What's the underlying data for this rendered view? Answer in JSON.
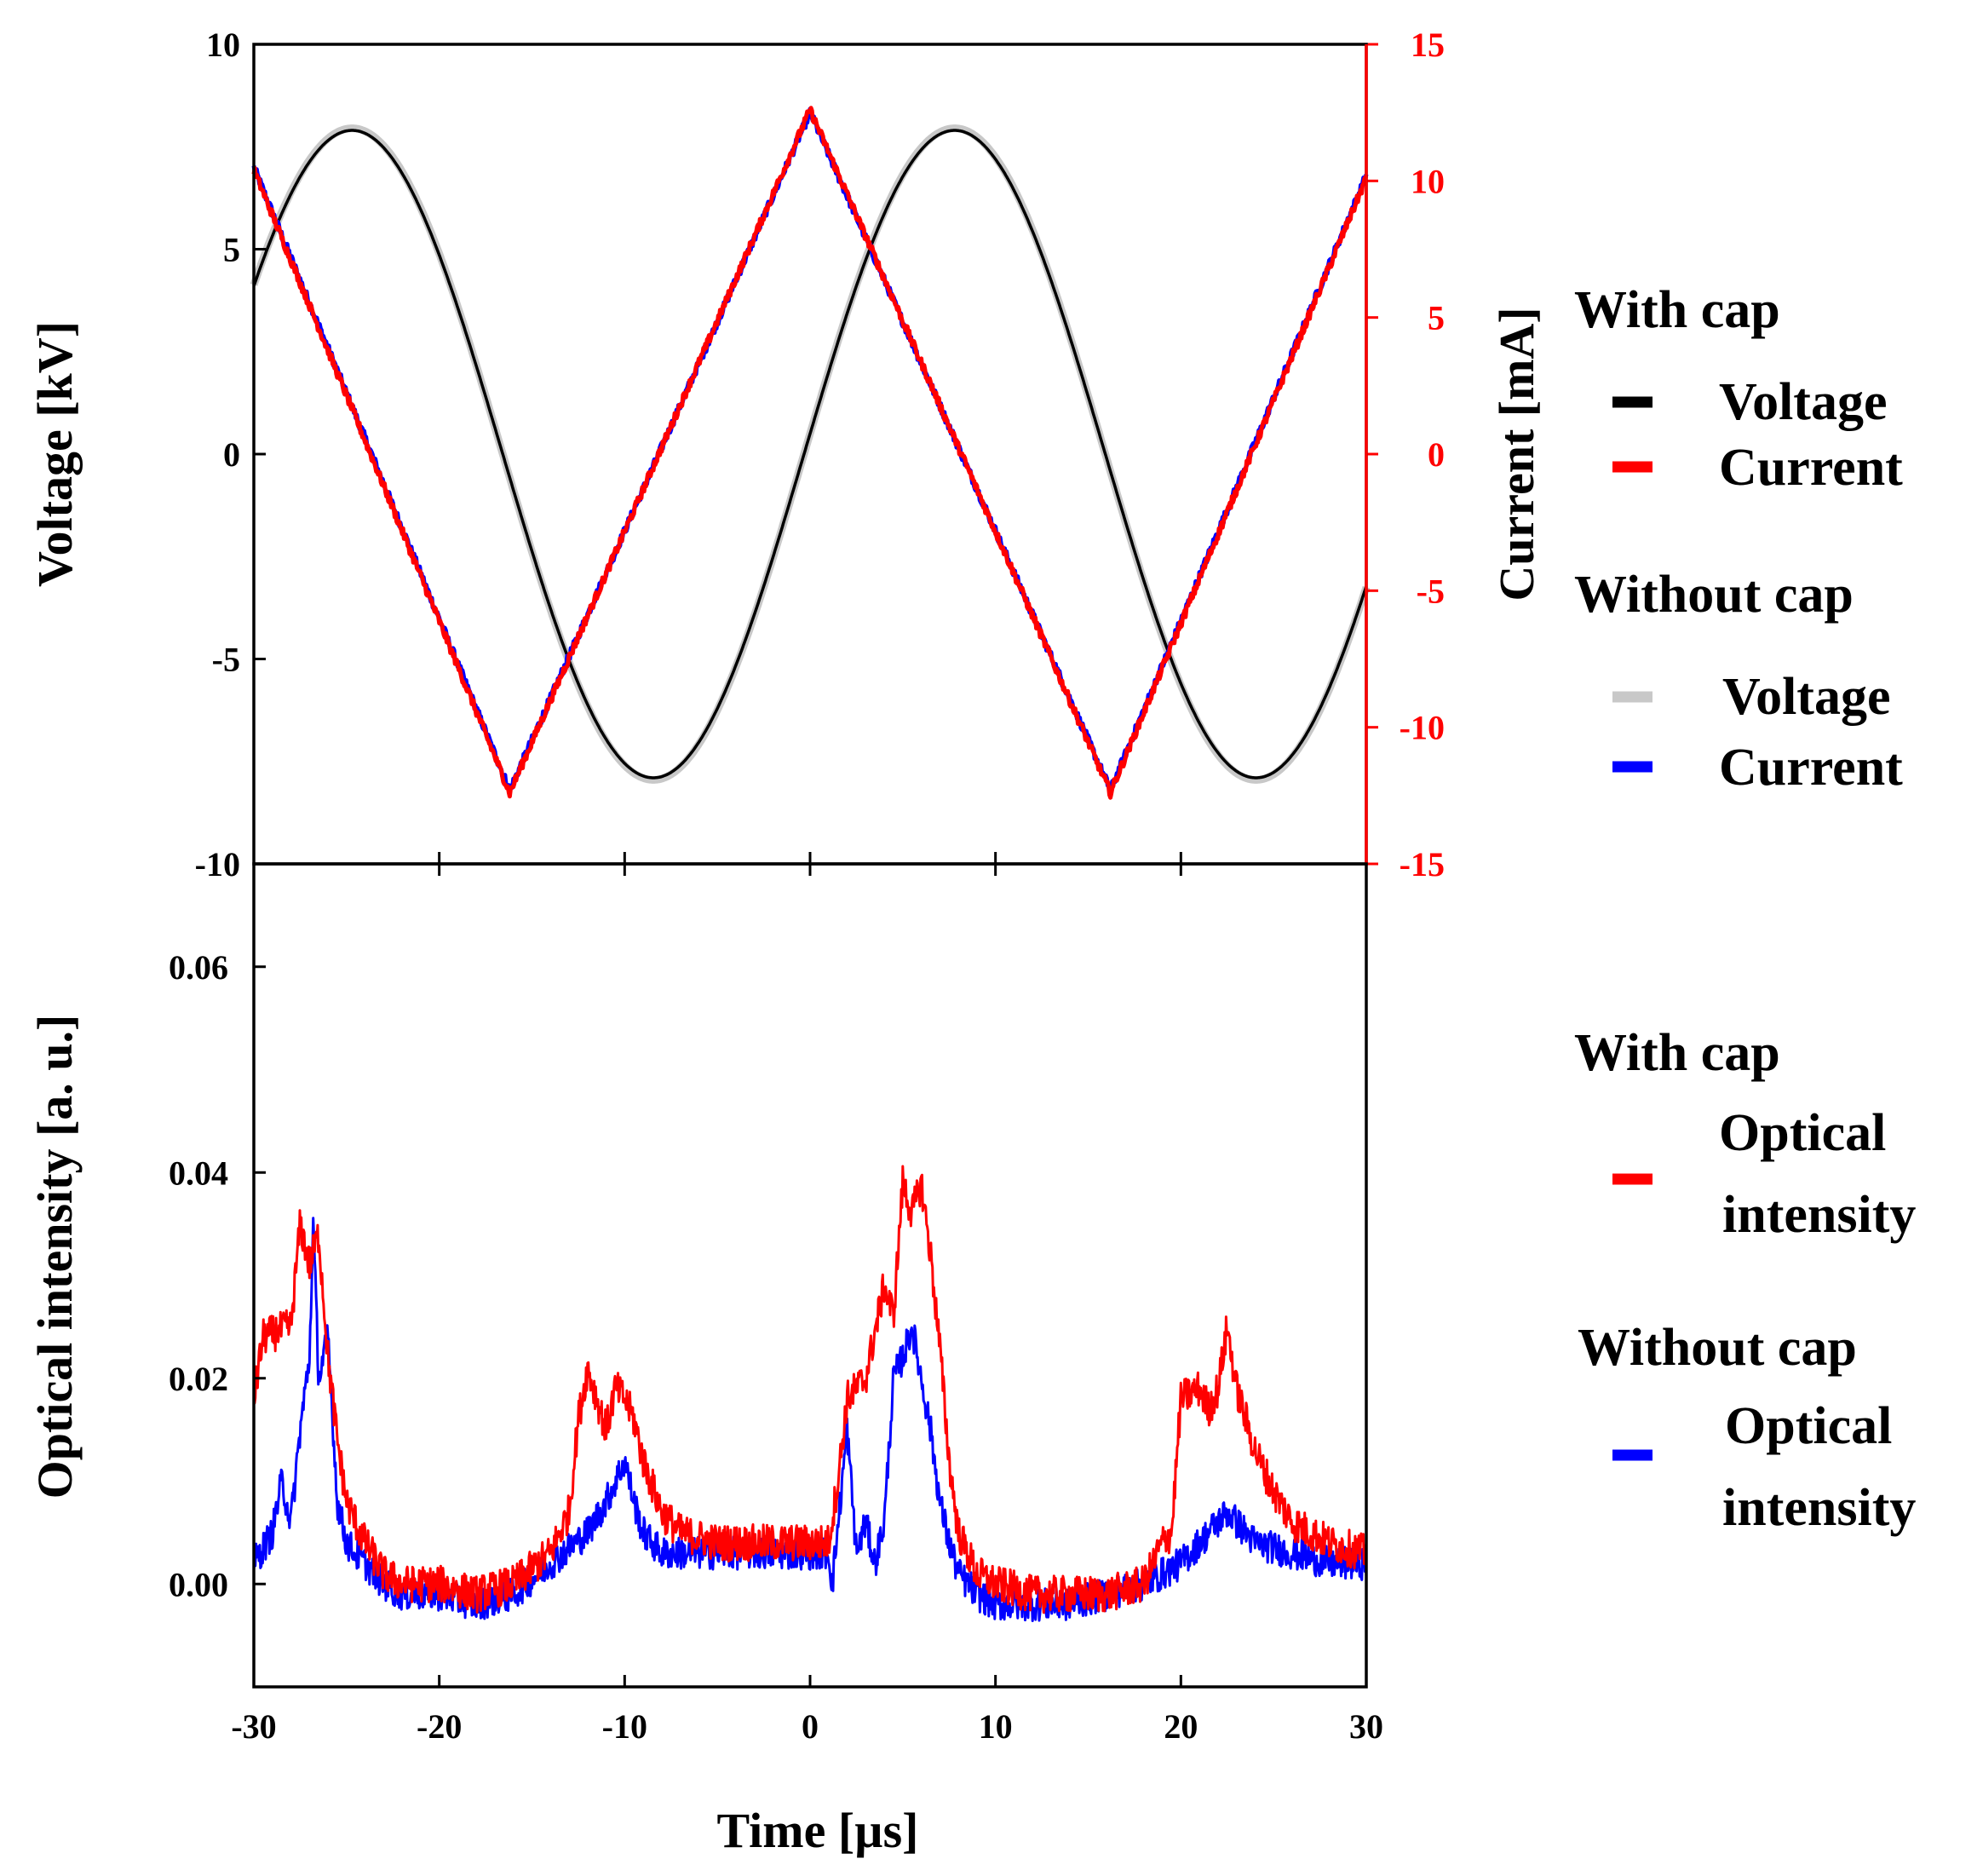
{
  "chart_data": [
    {
      "type": "line",
      "panel": "top",
      "x_unit": "µs",
      "xlim": [
        -30,
        30
      ],
      "ylabel": "Voltage [kV]",
      "ylim": [
        -10,
        10
      ],
      "yticks": [
        -10,
        -5,
        0,
        5,
        10
      ],
      "y2label": "Current [mA]",
      "y2lim": [
        -15,
        15
      ],
      "y2ticks": [
        -15,
        -10,
        -5,
        0,
        5,
        10,
        15
      ],
      "y2_color": "#ff0000",
      "series": [
        {
          "name": "Voltage (without cap)",
          "axis": "y",
          "color": "#c8c8c8",
          "width": 9,
          "shape": "sine",
          "amplitude": 7.95,
          "period_us": 32.5,
          "peak_at_us": 7.8
        },
        {
          "name": "Voltage (with cap)",
          "axis": "y",
          "color": "#000000",
          "width": 3.5,
          "shape": "sine",
          "amplitude": 7.9,
          "period_us": 32.5,
          "peak_at_us": 7.8
        },
        {
          "name": "Current (without cap)",
          "axis": "y2",
          "color": "#0000ff",
          "width": 5,
          "shape": "triangle",
          "x": [
            -30,
            -16.2,
            0,
            16.2,
            30
          ],
          "y": [
            10.5,
            -12.3,
            12.5,
            -12.3,
            10.2
          ]
        },
        {
          "name": "Current (with cap)",
          "axis": "y2",
          "color": "#ff0000",
          "width": 5,
          "shape": "triangle",
          "x": [
            -30,
            -16.2,
            0,
            16.2,
            30
          ],
          "y": [
            10.4,
            -12.4,
            12.6,
            -12.4,
            10.1
          ]
        }
      ],
      "legend": [
        {
          "group": "With cap",
          "items": [
            {
              "label": "Voltage",
              "color": "#000000"
            },
            {
              "label": "Current",
              "color": "#ff0000"
            }
          ]
        },
        {
          "group": "Without cap",
          "items": [
            {
              "label": "Voltage",
              "color": "#c8c8c8"
            },
            {
              "label": "Current",
              "color": "#0000ff"
            }
          ]
        }
      ]
    },
    {
      "type": "line",
      "panel": "bottom",
      "xlabel": "Time [µs]",
      "xlim": [
        -30,
        30
      ],
      "xticks": [
        -30,
        -20,
        -10,
        0,
        10,
        20,
        30
      ],
      "ylabel": "Optical intensity [a. u.]",
      "ylim": [
        -0.01,
        0.07
      ],
      "yticks": [
        "0.00",
        "0.02",
        "0.04",
        "0.06"
      ],
      "series": [
        {
          "name": "Optical intensity (with cap)",
          "color": "#ff0000",
          "width": 3,
          "noise": 0.0018,
          "x": [
            -30,
            -29.5,
            -28,
            -27.5,
            -27,
            -26.5,
            -26,
            -25.5,
            -25,
            -24,
            -23,
            -22,
            -20,
            -18,
            -16,
            -14,
            -13,
            -12.5,
            -12,
            -11.5,
            -11,
            -10.5,
            -10,
            -9.5,
            -9,
            -8,
            -7,
            -5,
            -2,
            0,
            1,
            1.5,
            2,
            3,
            4,
            4.5,
            5,
            5.5,
            6,
            6.5,
            7,
            7.5,
            8,
            9,
            10,
            12,
            14,
            16,
            18,
            19,
            19.5,
            20,
            21,
            21.5,
            22,
            22.5,
            23,
            24,
            25,
            26,
            27,
            28,
            30
          ],
          "y": [
            0.018,
            0.024,
            0.025,
            0.035,
            0.031,
            0.034,
            0.022,
            0.014,
            0.008,
            0.004,
            0.001,
            0.0,
            0.0,
            -0.001,
            0.0,
            0.003,
            0.007,
            0.016,
            0.021,
            0.018,
            0.015,
            0.019,
            0.018,
            0.016,
            0.012,
            0.007,
            0.005,
            0.004,
            0.004,
            0.004,
            0.004,
            0.01,
            0.018,
            0.02,
            0.029,
            0.026,
            0.039,
            0.036,
            0.039,
            0.032,
            0.023,
            0.012,
            0.005,
            0.001,
            0.0,
            -0.001,
            -0.001,
            -0.001,
            0.0,
            0.004,
            0.005,
            0.018,
            0.019,
            0.017,
            0.019,
            0.025,
            0.019,
            0.013,
            0.009,
            0.006,
            0.005,
            0.004,
            0.003
          ]
        },
        {
          "name": "Optical intensity (without cap)",
          "color": "#0000ff",
          "width": 3,
          "noise": 0.0016,
          "x": [
            -30,
            -29,
            -28.5,
            -28,
            -27.5,
            -27,
            -26.8,
            -26.5,
            -26,
            -25.5,
            -25,
            -24,
            -23,
            -22,
            -20,
            -18,
            -16,
            -14,
            -12,
            -11,
            -10.5,
            -10,
            -9.5,
            -9,
            -8,
            -7,
            -5,
            -2,
            0,
            1,
            1.2,
            2,
            2.5,
            3,
            3.5,
            4,
            4.5,
            5,
            5.5,
            6,
            6.5,
            7,
            7.5,
            8,
            9,
            10,
            12,
            14,
            16,
            18,
            20,
            21,
            22,
            22.5,
            23,
            24,
            26,
            28,
            30
          ],
          "y": [
            0.002,
            0.005,
            0.01,
            0.006,
            0.015,
            0.022,
            0.035,
            0.02,
            0.024,
            0.008,
            0.004,
            0.002,
            0.0,
            -0.001,
            -0.001,
            -0.002,
            -0.001,
            0.002,
            0.005,
            0.008,
            0.01,
            0.012,
            0.008,
            0.005,
            0.003,
            0.003,
            0.003,
            0.003,
            0.003,
            0.003,
            0.0,
            0.015,
            0.003,
            0.006,
            0.002,
            0.006,
            0.02,
            0.022,
            0.025,
            0.02,
            0.015,
            0.008,
            0.004,
            0.001,
            -0.001,
            -0.002,
            -0.002,
            -0.002,
            -0.001,
            0.0,
            0.002,
            0.004,
            0.006,
            0.007,
            0.006,
            0.004,
            0.003,
            0.002,
            0.002
          ]
        }
      ],
      "legend": [
        {
          "group": "With cap",
          "items": [
            {
              "label": "Optical intensity",
              "lines": [
                "Optical",
                "intensity"
              ],
              "color": "#ff0000"
            }
          ]
        },
        {
          "group": "Without cap",
          "items": [
            {
              "label": "Optical intensity",
              "lines": [
                "Optical",
                "intensity"
              ],
              "color": "#0000ff"
            }
          ]
        }
      ]
    }
  ]
}
